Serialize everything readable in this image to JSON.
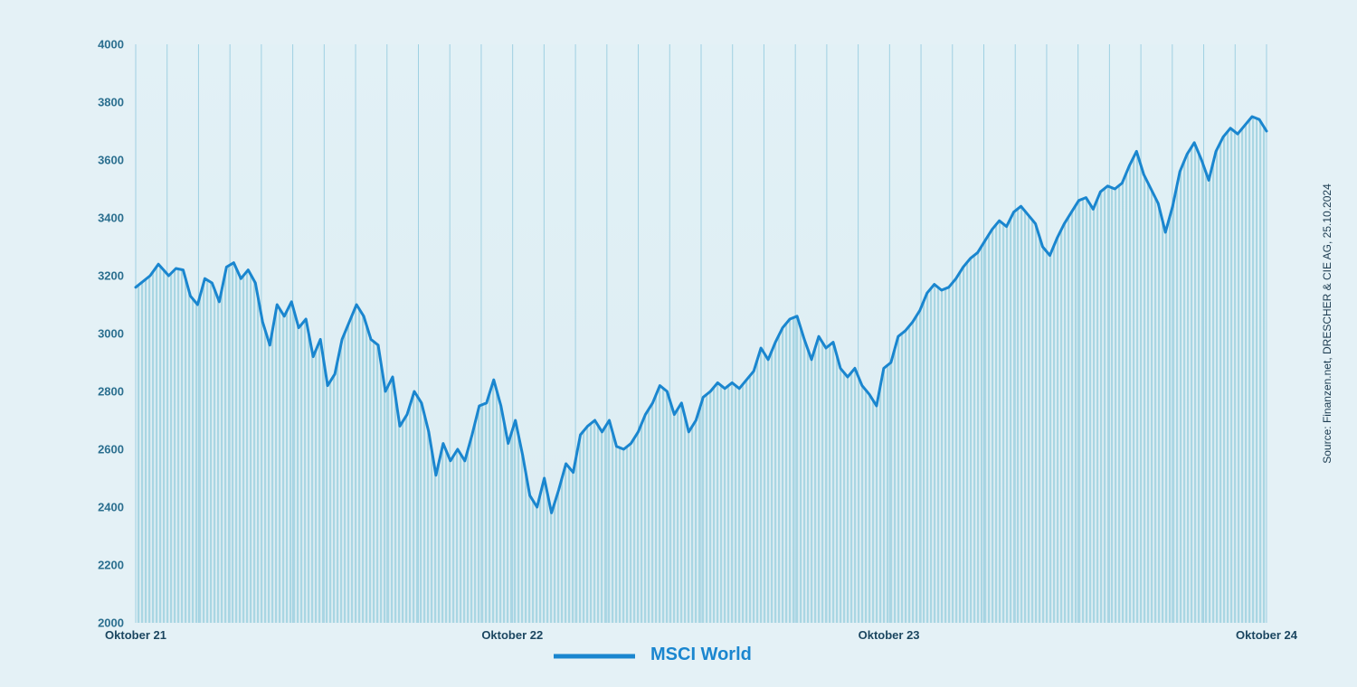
{
  "colors": {
    "background": "#e4f1f6",
    "line": "#1a86cf",
    "fill": "#a9d6e3",
    "axis_text": "#2b6f8f",
    "grid": "#9fd0e2"
  },
  "source_text": "Source: Finanzen.net, DRESCHER & CIE AG, 25.10.2024",
  "chart_data": {
    "type": "area",
    "title": "",
    "xlabel": "",
    "ylabel": "",
    "ylim": [
      2000,
      4000
    ],
    "yticks": [
      2000,
      2200,
      2400,
      2600,
      2800,
      3000,
      3200,
      3400,
      3600,
      3800,
      4000
    ],
    "xlim": [
      "2021-10-25",
      "2024-10-25"
    ],
    "xticks": [
      {
        "label": "Oktober 21",
        "date": "2021-10-25"
      },
      {
        "label": "Oktober 22",
        "date": "2022-10-25"
      },
      {
        "label": "Oktober 23",
        "date": "2023-10-25"
      },
      {
        "label": "Oktober 24",
        "date": "2024-10-25"
      }
    ],
    "grid": "vertical",
    "legend": "bottom-center",
    "series": [
      {
        "name": "MSCI World",
        "points": [
          [
            "2021-10-25",
            3160
          ],
          [
            "2021-11-08",
            3200
          ],
          [
            "2021-11-16",
            3240
          ],
          [
            "2021-11-26",
            3200
          ],
          [
            "2021-12-03",
            3225
          ],
          [
            "2021-12-10",
            3220
          ],
          [
            "2021-12-17",
            3130
          ],
          [
            "2021-12-24",
            3100
          ],
          [
            "2021-12-31",
            3190
          ],
          [
            "2022-01-07",
            3175
          ],
          [
            "2022-01-14",
            3110
          ],
          [
            "2022-01-21",
            3230
          ],
          [
            "2022-01-28",
            3245
          ],
          [
            "2022-02-04",
            3190
          ],
          [
            "2022-02-11",
            3220
          ],
          [
            "2022-02-18",
            3175
          ],
          [
            "2022-02-25",
            3040
          ],
          [
            "2022-03-04",
            2960
          ],
          [
            "2022-03-11",
            3100
          ],
          [
            "2022-03-18",
            3060
          ],
          [
            "2022-03-25",
            3110
          ],
          [
            "2022-04-01",
            3020
          ],
          [
            "2022-04-08",
            3050
          ],
          [
            "2022-04-15",
            2920
          ],
          [
            "2022-04-22",
            2980
          ],
          [
            "2022-04-29",
            2820
          ],
          [
            "2022-05-06",
            2860
          ],
          [
            "2022-05-13",
            2980
          ],
          [
            "2022-05-20",
            3040
          ],
          [
            "2022-05-27",
            3100
          ],
          [
            "2022-06-03",
            3060
          ],
          [
            "2022-06-10",
            2980
          ],
          [
            "2022-06-17",
            2960
          ],
          [
            "2022-06-24",
            2800
          ],
          [
            "2022-07-01",
            2850
          ],
          [
            "2022-07-08",
            2680
          ],
          [
            "2022-07-15",
            2720
          ],
          [
            "2022-07-22",
            2800
          ],
          [
            "2022-07-29",
            2760
          ],
          [
            "2022-08-05",
            2660
          ],
          [
            "2022-08-12",
            2510
          ],
          [
            "2022-08-19",
            2620
          ],
          [
            "2022-08-26",
            2560
          ],
          [
            "2022-09-02",
            2600
          ],
          [
            "2022-09-09",
            2560
          ],
          [
            "2022-09-16",
            2650
          ],
          [
            "2022-09-23",
            2750
          ],
          [
            "2022-09-30",
            2760
          ],
          [
            "2022-10-07",
            2840
          ],
          [
            "2022-10-14",
            2750
          ],
          [
            "2022-10-21",
            2620
          ],
          [
            "2022-10-28",
            2700
          ],
          [
            "2022-11-04",
            2580
          ],
          [
            "2022-11-11",
            2440
          ],
          [
            "2022-11-18",
            2400
          ],
          [
            "2022-11-25",
            2500
          ],
          [
            "2022-12-02",
            2380
          ],
          [
            "2022-12-09",
            2460
          ],
          [
            "2022-12-16",
            2550
          ],
          [
            "2022-12-23",
            2520
          ],
          [
            "2022-12-30",
            2650
          ],
          [
            "2023-01-06",
            2680
          ],
          [
            "2023-01-13",
            2700
          ],
          [
            "2023-01-20",
            2660
          ],
          [
            "2023-01-27",
            2700
          ],
          [
            "2023-02-03",
            2610
          ],
          [
            "2023-02-10",
            2600
          ],
          [
            "2023-02-17",
            2620
          ],
          [
            "2023-02-24",
            2660
          ],
          [
            "2023-03-03",
            2720
          ],
          [
            "2023-03-10",
            2760
          ],
          [
            "2023-03-17",
            2820
          ],
          [
            "2023-03-24",
            2800
          ],
          [
            "2023-03-31",
            2720
          ],
          [
            "2023-04-07",
            2760
          ],
          [
            "2023-04-14",
            2660
          ],
          [
            "2023-04-21",
            2700
          ],
          [
            "2023-04-28",
            2780
          ],
          [
            "2023-05-05",
            2800
          ],
          [
            "2023-05-12",
            2830
          ],
          [
            "2023-05-19",
            2810
          ],
          [
            "2023-05-26",
            2830
          ],
          [
            "2023-06-02",
            2810
          ],
          [
            "2023-06-09",
            2840
          ],
          [
            "2023-06-16",
            2870
          ],
          [
            "2023-06-23",
            2950
          ],
          [
            "2023-06-30",
            2910
          ],
          [
            "2023-07-07",
            2970
          ],
          [
            "2023-07-14",
            3020
          ],
          [
            "2023-07-21",
            3050
          ],
          [
            "2023-07-28",
            3060
          ],
          [
            "2023-08-04",
            2980
          ],
          [
            "2023-08-11",
            2910
          ],
          [
            "2023-08-18",
            2990
          ],
          [
            "2023-08-25",
            2950
          ],
          [
            "2023-09-01",
            2970
          ],
          [
            "2023-09-08",
            2880
          ],
          [
            "2023-09-15",
            2850
          ],
          [
            "2023-09-22",
            2880
          ],
          [
            "2023-09-29",
            2820
          ],
          [
            "2023-10-06",
            2790
          ],
          [
            "2023-10-13",
            2750
          ],
          [
            "2023-10-20",
            2880
          ],
          [
            "2023-10-27",
            2900
          ],
          [
            "2023-11-03",
            2990
          ],
          [
            "2023-11-10",
            3010
          ],
          [
            "2023-11-17",
            3040
          ],
          [
            "2023-11-24",
            3080
          ],
          [
            "2023-12-01",
            3140
          ],
          [
            "2023-12-08",
            3170
          ],
          [
            "2023-12-15",
            3150
          ],
          [
            "2023-12-22",
            3160
          ],
          [
            "2023-12-29",
            3190
          ],
          [
            "2024-01-05",
            3230
          ],
          [
            "2024-01-12",
            3260
          ],
          [
            "2024-01-19",
            3280
          ],
          [
            "2024-01-26",
            3320
          ],
          [
            "2024-02-02",
            3360
          ],
          [
            "2024-02-09",
            3390
          ],
          [
            "2024-02-16",
            3370
          ],
          [
            "2024-02-23",
            3420
          ],
          [
            "2024-03-01",
            3440
          ],
          [
            "2024-03-08",
            3410
          ],
          [
            "2024-03-15",
            3380
          ],
          [
            "2024-03-22",
            3300
          ],
          [
            "2024-03-29",
            3270
          ],
          [
            "2024-04-05",
            3330
          ],
          [
            "2024-04-12",
            3380
          ],
          [
            "2024-04-19",
            3420
          ],
          [
            "2024-04-26",
            3460
          ],
          [
            "2024-05-03",
            3470
          ],
          [
            "2024-05-10",
            3430
          ],
          [
            "2024-05-17",
            3490
          ],
          [
            "2024-05-24",
            3510
          ],
          [
            "2024-05-31",
            3500
          ],
          [
            "2024-06-07",
            3520
          ],
          [
            "2024-06-14",
            3580
          ],
          [
            "2024-06-21",
            3630
          ],
          [
            "2024-06-28",
            3550
          ],
          [
            "2024-07-05",
            3500
          ],
          [
            "2024-07-12",
            3450
          ],
          [
            "2024-07-19",
            3350
          ],
          [
            "2024-07-26",
            3440
          ],
          [
            "2024-08-02",
            3560
          ],
          [
            "2024-08-09",
            3620
          ],
          [
            "2024-08-16",
            3660
          ],
          [
            "2024-08-23",
            3600
          ],
          [
            "2024-08-30",
            3530
          ],
          [
            "2024-09-06",
            3630
          ],
          [
            "2024-09-13",
            3680
          ],
          [
            "2024-09-20",
            3710
          ],
          [
            "2024-09-27",
            3690
          ],
          [
            "2024-10-04",
            3720
          ],
          [
            "2024-10-11",
            3750
          ],
          [
            "2024-10-18",
            3740
          ],
          [
            "2024-10-25",
            3700
          ]
        ]
      }
    ]
  }
}
